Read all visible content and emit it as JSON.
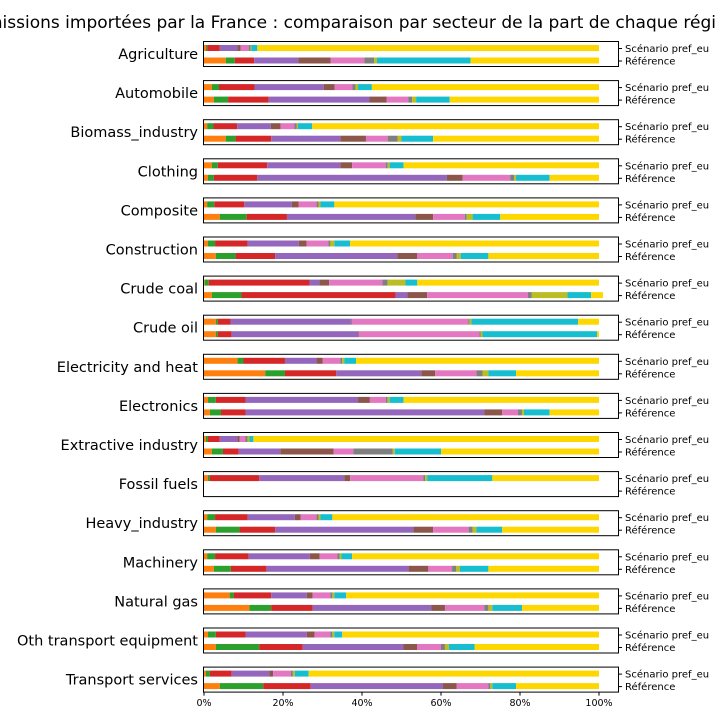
{
  "chart_data": {
    "type": "bar",
    "orientation": "horizontal",
    "stacked": true,
    "normalized": true,
    "title": "missions importées par la France : comparaison par secteur de la part de chaque régi",
    "row_labels": [
      "Scénario pref_eu",
      "Référence"
    ],
    "xticks": [
      "0%",
      "20%",
      "40%",
      "60%",
      "80%",
      "100%"
    ],
    "xlim": [
      0,
      100
    ],
    "colors": [
      "#ff7f0e",
      "#2ca02c",
      "#d62728",
      "#9467bd",
      "#8c564b",
      "#e377c2",
      "#7f7f7f",
      "#bcbd22",
      "#17becf",
      "#ffd700"
    ],
    "sectors": [
      {
        "name": "Agriculture",
        "pref": [
          0.5,
          0.3,
          3.2,
          4.5,
          0.8,
          2.0,
          0.5,
          0.2,
          1.5,
          86.5
        ],
        "ref": [
          5.5,
          2.3,
          4.9,
          11.2,
          8.2,
          8.5,
          2.5,
          0.7,
          23.7,
          32.5
        ]
      },
      {
        "name": "Automobile",
        "pref": [
          2.0,
          1.8,
          9.0,
          17.5,
          2.8,
          4.5,
          0.8,
          0.6,
          3.5,
          57.5
        ],
        "ref": [
          2.5,
          3.6,
          10.3,
          25.5,
          4.3,
          5.5,
          1.0,
          1.0,
          8.5,
          37.8
        ]
      },
      {
        "name": "Biomass_industry",
        "pref": [
          0.8,
          1.6,
          6.0,
          8.5,
          2.5,
          3.5,
          0.6,
          0.3,
          3.6,
          72.6
        ],
        "ref": [
          5.5,
          2.5,
          9.0,
          17.5,
          6.5,
          5.5,
          2.5,
          1.0,
          8.0,
          42.0
        ]
      },
      {
        "name": "Clothing",
        "pref": [
          2.0,
          1.5,
          12.5,
          18.5,
          3.0,
          8.5,
          0.5,
          0.5,
          3.5,
          49.5
        ],
        "ref": [
          1.0,
          1.5,
          11.0,
          48.0,
          4.0,
          12.0,
          1.0,
          0.5,
          8.5,
          12.5
        ]
      },
      {
        "name": "Composite",
        "pref": [
          0.8,
          1.8,
          7.6,
          12.0,
          1.8,
          4.5,
          0.5,
          0.5,
          3.5,
          67.0
        ],
        "ref": [
          4.0,
          6.8,
          10.2,
          32.5,
          4.5,
          8.0,
          0.5,
          1.5,
          7.0,
          25.0
        ]
      },
      {
        "name": "Construction",
        "pref": [
          1.0,
          1.8,
          8.2,
          13.0,
          2.0,
          5.5,
          0.5,
          1.0,
          4.0,
          63.0
        ],
        "ref": [
          3.0,
          5.0,
          10.0,
          31.0,
          5.0,
          9.0,
          1.0,
          1.0,
          7.0,
          28.0
        ]
      },
      {
        "name": "Crude coal",
        "pref": [
          0.2,
          1.0,
          25.5,
          2.5,
          2.5,
          13.5,
          1.3,
          4.5,
          3.0,
          46.0
        ],
        "ref": [
          2.0,
          7.5,
          39.0,
          3.0,
          5.0,
          25.5,
          1.0,
          9.0,
          6.0,
          3.0
        ]
      },
      {
        "name": "Crude oil",
        "pref": [
          3.0,
          0.5,
          3.2,
          30.5,
          0.2,
          29.5,
          0.3,
          0.5,
          27.0,
          5.3
        ],
        "ref": [
          3.0,
          0.5,
          3.5,
          32.0,
          0.2,
          30.5,
          0.3,
          0.5,
          29.0,
          0.5
        ]
      },
      {
        "name": "Electricity and heat",
        "pref": [
          8.5,
          1.5,
          10.5,
          8.0,
          1.5,
          4.5,
          0.5,
          0.5,
          3.0,
          61.5
        ],
        "ref": [
          15.5,
          5.0,
          13.0,
          21.5,
          3.5,
          10.5,
          1.5,
          1.5,
          7.0,
          21.0
        ]
      },
      {
        "name": "Electronics",
        "pref": [
          1.0,
          2.0,
          7.5,
          28.5,
          3.0,
          4.0,
          0.5,
          0.5,
          3.5,
          49.5
        ],
        "ref": [
          1.5,
          2.8,
          6.2,
          60.5,
          4.5,
          4.0,
          1.0,
          0.5,
          6.5,
          12.5
        ]
      },
      {
        "name": "Extractive industry",
        "pref": [
          0.5,
          0.5,
          3.0,
          4.5,
          0.5,
          1.5,
          0.5,
          0.5,
          1.0,
          87.5
        ],
        "ref": [
          2.0,
          2.8,
          4.0,
          10.5,
          13.5,
          5.0,
          10.0,
          0.5,
          11.7,
          40.0
        ]
      },
      {
        "name": "Fossil fuels",
        "pref": [
          1.0,
          0.5,
          12.5,
          21.5,
          1.5,
          18.5,
          0.5,
          0.5,
          16.5,
          27.0
        ]
      },
      {
        "name": "Heavy_industry",
        "pref": [
          0.8,
          2.0,
          8.2,
          12.0,
          1.5,
          4.0,
          0.5,
          0.5,
          3.0,
          67.5
        ],
        "ref": [
          3.0,
          6.0,
          9.0,
          35.0,
          5.0,
          9.0,
          1.0,
          1.0,
          6.5,
          24.5
        ]
      },
      {
        "name": "Machinery",
        "pref": [
          0.8,
          2.0,
          8.5,
          15.5,
          2.5,
          4.5,
          0.5,
          0.5,
          2.7,
          62.5
        ],
        "ref": [
          2.5,
          4.3,
          9.0,
          36.0,
          5.0,
          6.0,
          1.0,
          1.0,
          7.2,
          28.0
        ]
      },
      {
        "name": "Natural gas",
        "pref": [
          6.5,
          1.0,
          9.5,
          9.0,
          1.5,
          4.5,
          0.5,
          0.5,
          3.0,
          64.0
        ],
        "ref": [
          11.5,
          5.5,
          10.5,
          30.0,
          3.5,
          10.0,
          1.0,
          1.0,
          7.5,
          19.5
        ]
      },
      {
        "name": "Oth transport equipment",
        "pref": [
          1.0,
          2.0,
          7.5,
          15.5,
          2.0,
          4.0,
          0.5,
          0.5,
          2.0,
          65.0
        ],
        "ref": [
          3.0,
          11.0,
          11.0,
          25.5,
          3.5,
          6.0,
          1.0,
          1.0,
          6.5,
          31.5
        ]
      },
      {
        "name": "Transport services",
        "pref": [
          0.5,
          1.0,
          5.5,
          9.5,
          1.0,
          4.5,
          0.5,
          0.5,
          3.5,
          73.5
        ],
        "ref": [
          4.0,
          11.0,
          12.0,
          33.5,
          3.5,
          8.0,
          0.5,
          0.5,
          6.0,
          21.0
        ]
      }
    ]
  }
}
